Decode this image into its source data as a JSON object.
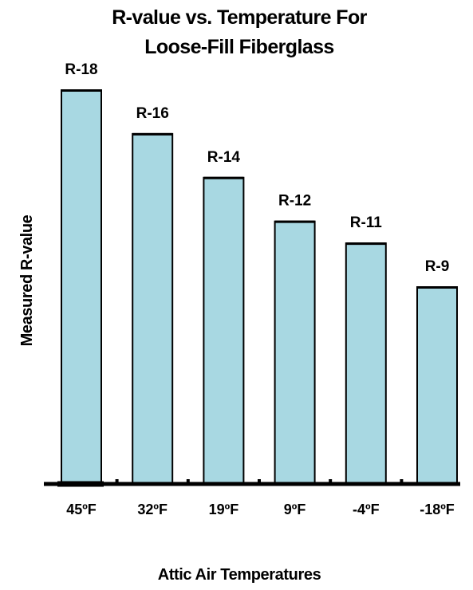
{
  "chart_data": {
    "type": "bar",
    "title_lines": [
      "R-value vs. Temperature For",
      "Loose-Fill Fiberglass"
    ],
    "xlabel": "Attic Air Temperatures",
    "ylabel": "Measured R-value",
    "categories": [
      "45ºF",
      "32ºF",
      "19ºF",
      "9ºF",
      "-4ºF",
      "-18ºF"
    ],
    "values": [
      18,
      16,
      14,
      12,
      11,
      9
    ],
    "data_labels": [
      "R-18",
      "R-16",
      "R-14",
      "R-12",
      "R-11",
      "R-9"
    ],
    "ylim": [
      0,
      18
    ],
    "grid": false,
    "legend": "none",
    "bar_color": "#a8d8e2",
    "bar_outline_color": "#000000"
  }
}
